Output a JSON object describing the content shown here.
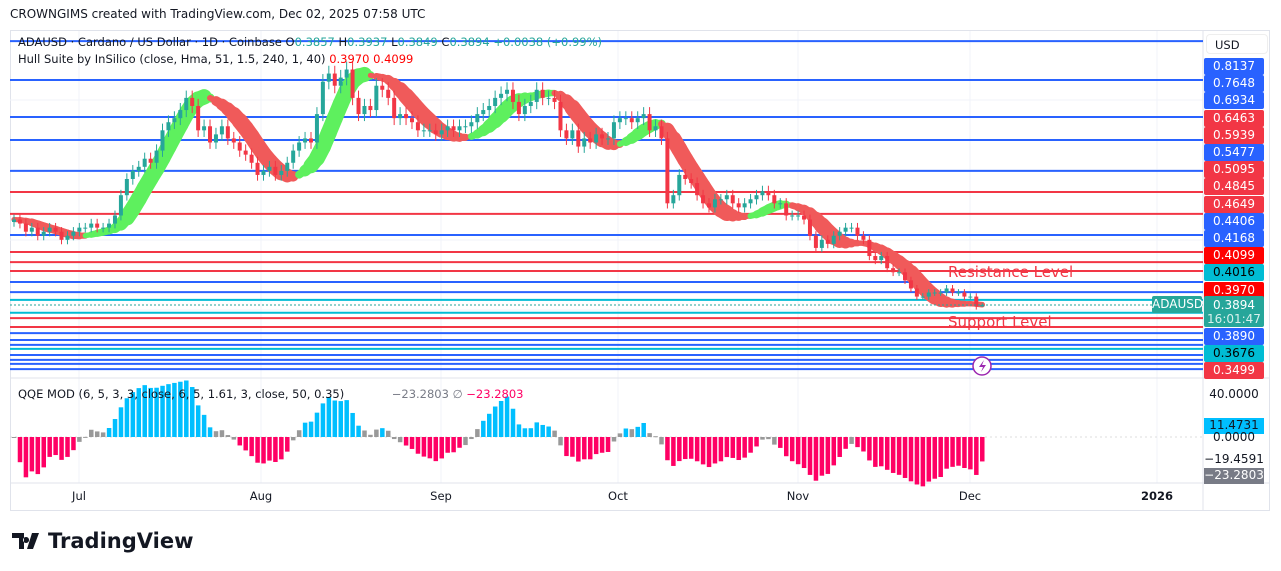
{
  "header": "CROWNGIMS created with TradingView.com, Dec 02, 2025 07:58 UTC",
  "legend": {
    "symbol": "ADAUSD · Cardano / US Dollar · 1D · Coinbase",
    "o_label": "O",
    "o": "0.3857",
    "h_label": "H",
    "h": "0.3937",
    "l_label": "L",
    "l": "0.3849",
    "c_label": "C",
    "c": "0.3894",
    "change": "+0.0038 (+0.99%)",
    "hull": "Hull Suite by InSilico (close, Hma, 51, 1.5, 240, 1, 40)",
    "hull_v1": "0.3970",
    "hull_v2": "0.4099",
    "qqe": "QQE MOD (6, 5, 3, 3, close, 6, 5, 1.61, 3, close, 50, 0.35)",
    "qqe_v1": "−23.2803",
    "qqe_sym": "∅",
    "qqe_v2": "−23.2803"
  },
  "currency": "USD",
  "price_labels": [
    {
      "text": "0.8137",
      "color": "#2962ff"
    },
    {
      "text": "0.7648",
      "color": "#2962ff"
    },
    {
      "text": "0.6934",
      "color": "#2962ff"
    },
    {
      "text": "0.6463",
      "color": "#f23645"
    },
    {
      "text": "0.5939",
      "color": "#f23645"
    },
    {
      "text": "0.5477",
      "color": "#2962ff"
    },
    {
      "text": "0.5095",
      "color": "#f23645"
    },
    {
      "text": "0.4845",
      "color": "#f23645"
    },
    {
      "text": "0.4649",
      "color": "#f23645"
    },
    {
      "text": "0.4406",
      "color": "#2962ff"
    },
    {
      "text": "0.4168",
      "color": "#2962ff"
    },
    {
      "text": "0.4099",
      "color": "#ff0000"
    },
    {
      "text": "0.4016",
      "color": "#00bcd4"
    },
    {
      "text": "0.3970",
      "color": "#ff0000"
    }
  ],
  "last_price": {
    "symbol": "ADAUSD",
    "price": "0.3894",
    "countdown": "16:01:47",
    "color": "#26a69a"
  },
  "price_labels_low": [
    {
      "text": "0.3890",
      "color": "#2962ff"
    },
    {
      "text": "0.3676",
      "color": "#00bcd4"
    },
    {
      "text": "0.3499",
      "color": "#f23645"
    }
  ],
  "qqe_axis": {
    "top": "40.0000",
    "zero": "0.0000",
    "low": "−19.4591",
    "marker1": "11.4731",
    "marker2": "−23.2803"
  },
  "annotations": {
    "resistance": "Resistance Level",
    "support": "Support Level"
  },
  "time_ticks": [
    "Jul",
    "Aug",
    "Sep",
    "Oct",
    "Nov",
    "Dec",
    "2026"
  ],
  "brand": "TradingView",
  "chart_data": {
    "type": "candlestick",
    "symbol": "ADAUSD",
    "interval": "1D",
    "closes": [
      0.6,
      0.59,
      0.57,
      0.58,
      0.56,
      0.57,
      0.58,
      0.57,
      0.55,
      0.56,
      0.57,
      0.58,
      0.58,
      0.59,
      0.58,
      0.58,
      0.59,
      0.61,
      0.66,
      0.7,
      0.72,
      0.73,
      0.75,
      0.74,
      0.77,
      0.82,
      0.84,
      0.85,
      0.87,
      0.9,
      0.88,
      0.82,
      0.83,
      0.79,
      0.81,
      0.83,
      0.8,
      0.79,
      0.77,
      0.76,
      0.74,
      0.71,
      0.72,
      0.73,
      0.71,
      0.72,
      0.74,
      0.77,
      0.79,
      0.8,
      0.79,
      0.86,
      0.94,
      0.96,
      0.93,
      0.95,
      0.97,
      0.9,
      0.86,
      0.88,
      0.87,
      0.93,
      0.92,
      0.9,
      0.85,
      0.86,
      0.85,
      0.84,
      0.82,
      0.82,
      0.82,
      0.81,
      0.82,
      0.83,
      0.82,
      0.83,
      0.83,
      0.84,
      0.86,
      0.87,
      0.88,
      0.9,
      0.91,
      0.92,
      0.89,
      0.86,
      0.88,
      0.89,
      0.92,
      0.9,
      0.9,
      0.89,
      0.82,
      0.8,
      0.82,
      0.78,
      0.8,
      0.79,
      0.81,
      0.8,
      0.8,
      0.84,
      0.85,
      0.85,
      0.84,
      0.85,
      0.86,
      0.82,
      0.83,
      0.8,
      0.64,
      0.66,
      0.71,
      0.7,
      0.69,
      0.66,
      0.64,
      0.63,
      0.65,
      0.65,
      0.66,
      0.64,
      0.63,
      0.64,
      0.65,
      0.66,
      0.67,
      0.66,
      0.64,
      0.64,
      0.61,
      0.61,
      0.61,
      0.6,
      0.56,
      0.53,
      0.55,
      0.54,
      0.56,
      0.57,
      0.58,
      0.58,
      0.56,
      0.55,
      0.51,
      0.5,
      0.51,
      0.48,
      0.47,
      0.47,
      0.45,
      0.43,
      0.41,
      0.41,
      0.42,
      0.42,
      0.42,
      0.43,
      0.42,
      0.42,
      0.41,
      0.41,
      0.3857,
      0.3894
    ],
    "last_candle": {
      "open": 0.3857,
      "high": 0.3937,
      "low": 0.3849,
      "close": 0.3894
    },
    "ylim": [
      0.3,
      1.06
    ],
    "levels": [
      {
        "price": 1.04,
        "color": "#2962ff"
      },
      {
        "price": 0.944,
        "color": "#2962ff"
      },
      {
        "price": 0.853,
        "color": "#2962ff"
      },
      {
        "price": 0.796,
        "color": "#2962ff"
      },
      {
        "price": 0.72,
        "color": "#2962ff"
      },
      {
        "price": 0.668,
        "color": "#f23645"
      },
      {
        "price": 0.614,
        "color": "#f23645"
      },
      {
        "price": 0.562,
        "color": "#2962ff"
      },
      {
        "price": 0.52,
        "color": "#f23645"
      },
      {
        "price": 0.495,
        "color": "#f23645"
      },
      {
        "price": 0.473,
        "color": "#f23645"
      },
      {
        "price": 0.446,
        "color": "#2962ff"
      },
      {
        "price": 0.421,
        "color": "#2962ff"
      },
      {
        "price": 0.402,
        "color": "#00bcd4"
      },
      {
        "price": 0.37,
        "color": "#00bcd4"
      },
      {
        "price": 0.357,
        "color": "#f23645"
      },
      {
        "price": 0.335,
        "color": "#f23645"
      },
      {
        "price": 0.32,
        "color": "#2962ff"
      },
      {
        "price": 0.303,
        "color": "#2962ff"
      },
      {
        "price": 0.291,
        "color": "#2962ff"
      },
      {
        "price": 0.281,
        "color": "#00bcd4"
      },
      {
        "price": 0.266,
        "color": "#2962ff"
      },
      {
        "price": 0.254,
        "color": "#2962ff"
      },
      {
        "price": 0.244,
        "color": "#2962ff"
      },
      {
        "price": 0.231,
        "color": "#2962ff"
      }
    ],
    "colors": {
      "up": "#26a69a",
      "down": "#f23645",
      "hull_up": "#5ef05e",
      "hull_down": "#f05a5a",
      "qqe_up": "#00bfff",
      "qqe_down": "#ff0064",
      "qqe_neutral": "#999999"
    }
  }
}
